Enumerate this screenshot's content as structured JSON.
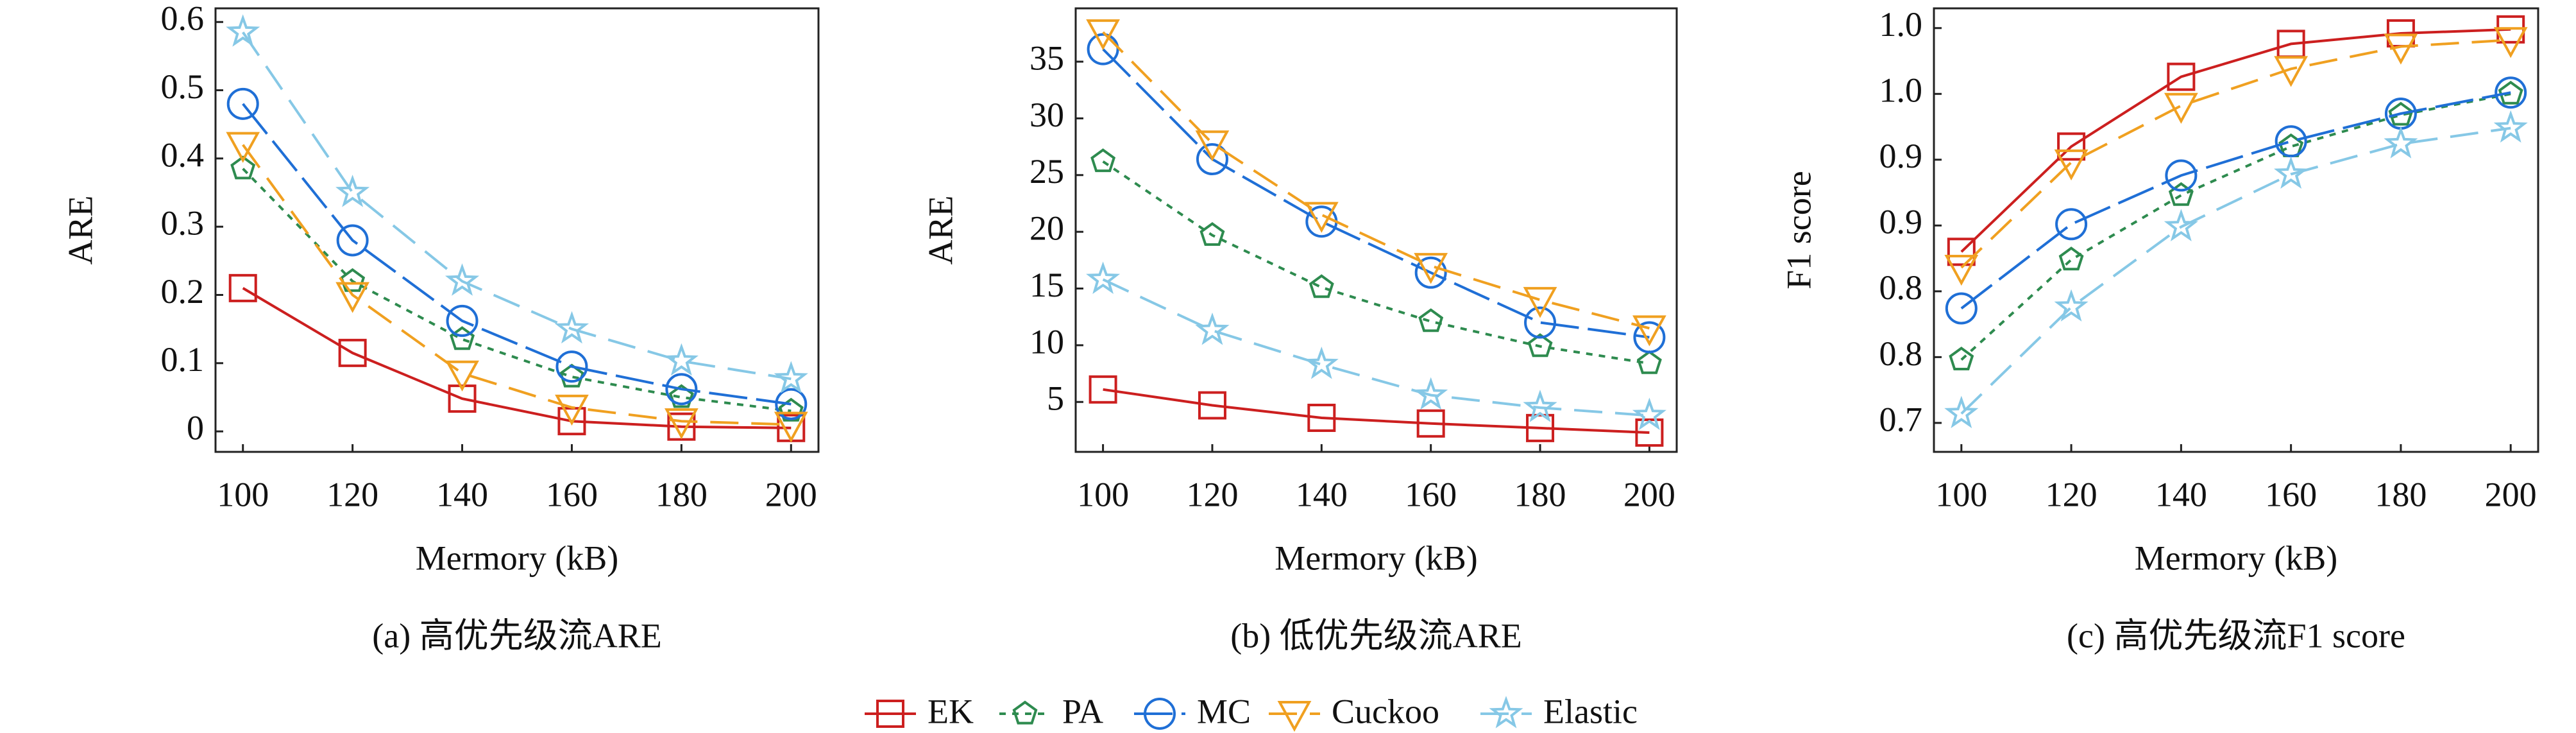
{
  "chart_data": [
    {
      "type": "line",
      "caption": "(a) 高优先级流ARE",
      "xlabel": "Mermory (kB)",
      "ylabel": "ARE",
      "x": [
        100,
        120,
        140,
        160,
        180,
        200
      ],
      "xlim": [
        95,
        205
      ],
      "xticks": [
        100,
        120,
        140,
        160,
        180,
        200
      ],
      "ylim": [
        -0.03,
        0.62
      ],
      "yticks": [
        0,
        0.1,
        0.2,
        0.3,
        0.4,
        0.5,
        0.6
      ],
      "series": [
        {
          "name": "EK",
          "color": "#cc1f1f",
          "values": [
            0.21,
            0.115,
            0.048,
            0.015,
            0.007,
            0.005
          ]
        },
        {
          "name": "PA",
          "color": "#2e8b4f",
          "values": [
            0.385,
            0.22,
            0.135,
            0.08,
            0.05,
            0.03
          ]
        },
        {
          "name": "MC",
          "color": "#1f6fd6",
          "values": [
            0.48,
            0.28,
            0.162,
            0.095,
            0.062,
            0.04
          ]
        },
        {
          "name": "Cuckoo",
          "color": "#f0a020",
          "values": [
            0.42,
            0.2,
            0.085,
            0.035,
            0.015,
            0.01
          ]
        },
        {
          "name": "Elastic",
          "color": "#86c8e6",
          "values": [
            0.585,
            0.35,
            0.22,
            0.15,
            0.103,
            0.077
          ]
        }
      ]
    },
    {
      "type": "line",
      "caption": "(b) 低优先级流ARE",
      "xlabel": "Mermory (kB)",
      "ylabel": "ARE",
      "x": [
        100,
        120,
        140,
        160,
        180,
        200
      ],
      "xlim": [
        95,
        205
      ],
      "xticks": [
        100,
        120,
        140,
        160,
        180,
        200
      ],
      "ylim": [
        0.6,
        39.7
      ],
      "yticks": [
        5,
        10,
        15,
        20,
        25,
        30,
        35
      ],
      "series": [
        {
          "name": "EK",
          "color": "#cc1f1f",
          "values": [
            6.1,
            4.7,
            3.6,
            3.1,
            2.7,
            2.3
          ]
        },
        {
          "name": "PA",
          "color": "#2e8b4f",
          "values": [
            26.2,
            19.7,
            15.1,
            12.1,
            9.9,
            8.4
          ]
        },
        {
          "name": "MC",
          "color": "#1f6fd6",
          "values": [
            36.1,
            26.4,
            20.9,
            16.4,
            12.0,
            10.7
          ]
        },
        {
          "name": "Cuckoo",
          "color": "#f0a020",
          "values": [
            37.6,
            27.8,
            21.5,
            17.0,
            14.0,
            11.5
          ]
        },
        {
          "name": "Elastic",
          "color": "#86c8e6",
          "values": [
            15.8,
            11.3,
            8.3,
            5.6,
            4.5,
            3.8
          ]
        }
      ]
    },
    {
      "type": "line",
      "caption": "(c) 高优先级流F1 score",
      "xlabel": "Mermory (kB)",
      "ylabel": "F1 score",
      "x": [
        100,
        120,
        140,
        160,
        180,
        200
      ],
      "xlim": [
        95,
        205
      ],
      "xticks": [
        100,
        120,
        140,
        160,
        180,
        200
      ],
      "ylim": [
        0.678,
        1.015
      ],
      "yticks": [
        0.7,
        {
          "value": 0.75,
          "label": "0.8"
        },
        0.8,
        {
          "value": 0.85,
          "label": "0.9"
        },
        0.9,
        {
          "value": 0.95,
          "label": "1.0"
        },
        {
          "value": 1.0,
          "label": "1.0"
        }
      ],
      "series": [
        {
          "name": "EK",
          "color": "#cc1f1f",
          "values": [
            0.83,
            0.91,
            0.963,
            0.988,
            0.996,
            0.999
          ]
        },
        {
          "name": "PA",
          "color": "#2e8b4f",
          "values": [
            0.748,
            0.824,
            0.873,
            0.91,
            0.934,
            0.95
          ]
        },
        {
          "name": "MC",
          "color": "#1f6fd6",
          "values": [
            0.787,
            0.851,
            0.888,
            0.914,
            0.935,
            0.951
          ]
        },
        {
          "name": "Cuckoo",
          "color": "#f0a020",
          "values": [
            0.818,
            0.898,
            0.941,
            0.969,
            0.986,
            0.991
          ]
        },
        {
          "name": "Elastic",
          "color": "#86c8e6",
          "values": [
            0.707,
            0.788,
            0.849,
            0.889,
            0.912,
            0.924
          ]
        }
      ]
    }
  ]
}
